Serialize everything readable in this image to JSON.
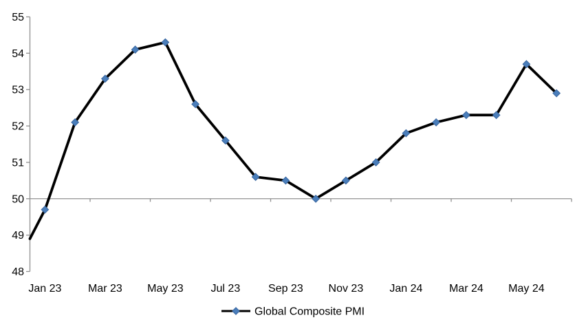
{
  "page": {
    "background": "#ffffff"
  },
  "chart_data": {
    "type": "line",
    "title": "",
    "categories": [
      "Jan 23",
      "Feb 23",
      "Mar 23",
      "Apr 23",
      "May 23",
      "Jun 23",
      "Jul 23",
      "Aug 23",
      "Sep 23",
      "Oct 23",
      "Nov 23",
      "Dec 23",
      "Jan 24",
      "Feb 24",
      "Mar 24",
      "Apr 24",
      "May 24",
      "Jun 24"
    ],
    "series": [
      {
        "name": "Global Composite PMI",
        "values": [
          49.7,
          52.1,
          53.3,
          54.1,
          54.3,
          52.6,
          51.6,
          50.6,
          50.5,
          50.0,
          50.5,
          51.0,
          51.8,
          52.1,
          52.3,
          52.3,
          53.7,
          52.9
        ]
      }
    ],
    "edge_start_value": 48.9,
    "x_axis": {
      "tick_labels": [
        "Jan 23",
        "Mar 23",
        "May 23",
        "Jul 23",
        "Sep 23",
        "Nov 23",
        "Jan 24",
        "Mar 24",
        "May 24"
      ],
      "label_interval": 2
    },
    "y_axis": {
      "min": 48,
      "max": 55,
      "step": 1,
      "tick_labels": [
        "48",
        "49",
        "50",
        "51",
        "52",
        "53",
        "54",
        "55"
      ]
    },
    "baseline": 50,
    "grid": false,
    "legend": {
      "label": "Global Composite PMI",
      "position": "bottom-center",
      "marker": "diamond"
    },
    "colors": {
      "line": "#000000",
      "marker_fill": "#4a7ebb",
      "marker_stroke": "#38659e",
      "axis": "#909090",
      "text": "#000000",
      "background": "#ffffff"
    }
  }
}
